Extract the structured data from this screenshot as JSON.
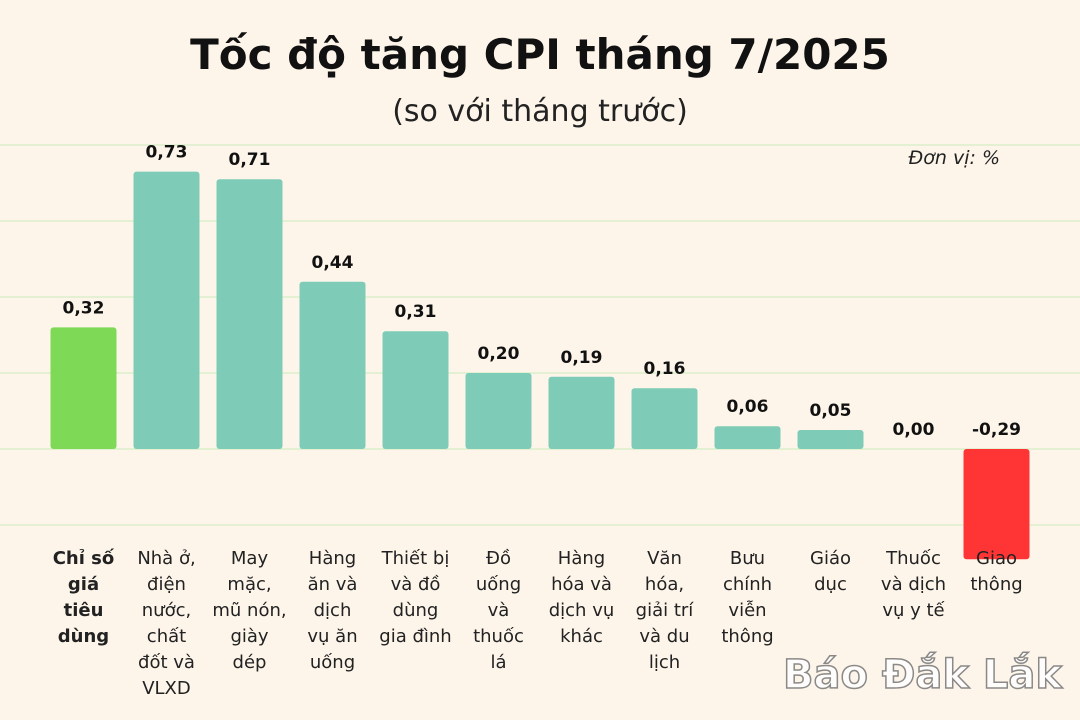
{
  "chart_data": {
    "type": "bar",
    "title": "Tốc độ tăng CPI tháng 7/2025",
    "subtitle": "(so với tháng trước)",
    "unit_label": "Đơn vị: %",
    "watermark": "Báo Đắk Lắk",
    "categories": [
      "Chỉ số\ngiá\ntiêu\ndùng",
      "Nhà ở,\nđiện\nnước,\nchất\nđốt và\nVLXD",
      "May\nmặc,\nmũ nón,\ngiày\ndép",
      "Hàng\năn và\ndịch\nvụ ăn\nuống",
      "Thiết bị\nvà đồ\ndùng\ngia đình",
      "Đồ\nuống\nvà\nthuốc\nlá",
      "Hàng\nhóa và\ndịch vụ\nkhác",
      "Văn\nhóa,\ngiải trí\nvà du\nlịch",
      "Bưu\nchính\nviễn\nthông",
      "Giáo\ndục",
      "Thuốc\nvà dịch\nvụ y tế",
      "Giao\nthông"
    ],
    "values": [
      0.32,
      0.73,
      0.71,
      0.44,
      0.31,
      0.2,
      0.19,
      0.16,
      0.06,
      0.05,
      0.0,
      -0.29
    ],
    "value_labels": [
      "0,32",
      "0,73",
      "0,71",
      "0,44",
      "0,31",
      "0,20",
      "0,19",
      "0,16",
      "0,06",
      "0,05",
      "0,00",
      "-0,29"
    ],
    "colors": [
      "#7ed957",
      "#7ecbb8",
      "#7ecbb8",
      "#7ecbb8",
      "#7ecbb8",
      "#7ecbb8",
      "#7ecbb8",
      "#7ecbb8",
      "#7ecbb8",
      "#7ecbb8",
      "#7ecbb8",
      "#ff3535"
    ],
    "ylim": [
      -0.3,
      0.8
    ],
    "yticks": [
      -0.2,
      0,
      0.2,
      0.4,
      0.6,
      0.8
    ],
    "grid": true
  }
}
